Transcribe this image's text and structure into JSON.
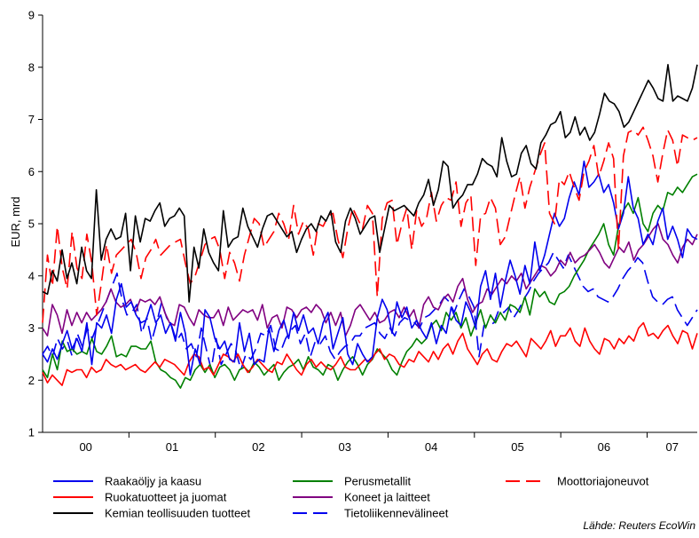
{
  "chart_data": {
    "type": "line",
    "ylabel": "EUR, mrd",
    "xlabel": "",
    "ylim": [
      1,
      9
    ],
    "y_ticks": [
      1,
      2,
      3,
      4,
      5,
      6,
      7,
      8,
      9
    ],
    "x_range": [
      2000.0,
      2007.58
    ],
    "year_labels": [
      {
        "label": "00",
        "year": 2000
      },
      {
        "label": "01",
        "year": 2001
      },
      {
        "label": "02",
        "year": 2002
      },
      {
        "label": "03",
        "year": 2003
      },
      {
        "label": "04",
        "year": 2004
      },
      {
        "label": "05",
        "year": 2005
      },
      {
        "label": "06",
        "year": 2006
      },
      {
        "label": "07",
        "year": 2007
      }
    ],
    "grid": false,
    "legend_position": "bottom",
    "source": "Lähde: Reuters EcoWin",
    "series": [
      {
        "name": "Raakaöljy ja kaasu",
        "color": "#0000ee",
        "dash": "solid",
        "values": [
          2.5,
          2.35,
          2.6,
          2.4,
          2.7,
          2.95,
          2.6,
          2.8,
          2.55,
          3.1,
          2.3,
          3.1,
          3.0,
          3.25,
          2.9,
          3.55,
          3.85,
          3.4,
          3.5,
          3.25,
          3.1,
          3.15,
          3.45,
          3.1,
          3.25,
          2.9,
          3.1,
          2.75,
          3.3,
          2.9,
          2.1,
          2.6,
          2.3,
          3.35,
          3.2,
          2.8,
          2.6,
          2.75,
          2.4,
          2.35,
          3.1,
          2.55,
          2.9,
          2.3,
          2.4,
          2.35,
          3.0,
          2.55,
          2.95,
          3.15,
          2.8,
          3.3,
          2.95,
          3.25,
          2.9,
          3.0,
          2.7,
          3.1,
          3.3,
          2.6,
          2.9,
          3.2,
          2.5,
          2.3,
          2.7,
          2.5,
          2.35,
          2.45,
          3.2,
          3.55,
          3.35,
          2.9,
          3.5,
          3.2,
          3.4,
          3.0,
          3.15,
          2.95,
          2.8,
          3.1,
          2.7,
          3.05,
          2.9,
          3.4,
          3.15,
          3.05,
          3.5,
          3.3,
          3.0,
          3.8,
          4.1,
          3.55,
          4.05,
          3.4,
          3.9,
          4.3,
          4.0,
          3.65,
          4.2,
          3.85,
          4.65,
          4.1,
          4.4,
          4.8,
          5.2,
          4.95,
          5.1,
          5.5,
          5.8,
          5.55,
          6.2,
          5.7,
          5.8,
          5.95,
          5.6,
          5.75,
          5.4,
          4.9,
          5.2,
          5.9,
          5.3,
          5.1,
          4.6,
          4.8,
          4.6,
          5.05,
          5.3,
          4.7,
          4.95,
          4.7,
          4.35,
          4.9,
          4.75,
          4.7
        ]
      },
      {
        "name": "Perusmetallit",
        "color": "#008000",
        "dash": "solid",
        "values": [
          2.2,
          2.05,
          2.5,
          2.2,
          2.75,
          2.55,
          2.6,
          2.5,
          2.55,
          2.5,
          2.8,
          2.55,
          2.5,
          2.65,
          2.85,
          2.45,
          2.5,
          2.45,
          2.65,
          2.65,
          2.6,
          2.6,
          2.75,
          2.35,
          2.2,
          2.15,
          2.05,
          2.0,
          1.85,
          2.05,
          2.0,
          2.2,
          2.3,
          2.15,
          2.3,
          2.05,
          2.25,
          2.3,
          2.2,
          2.0,
          2.2,
          2.25,
          2.15,
          2.35,
          2.25,
          2.1,
          2.2,
          2.3,
          2.0,
          2.15,
          2.25,
          2.3,
          2.4,
          2.2,
          2.45,
          2.25,
          2.2,
          2.1,
          2.3,
          2.25,
          2.0,
          2.2,
          2.35,
          2.45,
          2.3,
          2.1,
          2.3,
          2.4,
          2.6,
          2.5,
          2.4,
          2.2,
          2.1,
          2.35,
          2.55,
          2.65,
          2.8,
          2.7,
          2.8,
          3.05,
          3.15,
          2.95,
          3.3,
          3.15,
          3.3,
          3.0,
          3.2,
          2.85,
          3.1,
          3.35,
          3.0,
          3.25,
          3.1,
          3.3,
          3.15,
          3.45,
          3.4,
          3.3,
          3.6,
          3.25,
          3.75,
          3.6,
          3.7,
          3.5,
          3.45,
          3.65,
          3.7,
          3.8,
          4.0,
          4.15,
          4.3,
          4.5,
          4.65,
          4.8,
          5.0,
          4.6,
          4.4,
          4.95,
          5.25,
          5.4,
          5.2,
          5.5,
          5.0,
          4.85,
          5.2,
          5.35,
          5.25,
          5.6,
          5.55,
          5.7,
          5.6,
          5.75,
          5.9,
          5.95
        ]
      },
      {
        "name": "Moottoriajoneuvot",
        "color": "#ff0000",
        "dash": "dashed",
        "values": [
          3.1,
          4.4,
          3.8,
          4.95,
          4.15,
          3.75,
          4.85,
          4.15,
          3.95,
          4.8,
          4.25,
          3.25,
          3.9,
          4.6,
          4.05,
          4.4,
          4.5,
          4.6,
          4.7,
          4.45,
          3.95,
          4.35,
          4.5,
          4.7,
          4.4,
          4.5,
          4.6,
          4.65,
          4.7,
          4.25,
          3.85,
          4.0,
          4.3,
          4.6,
          4.7,
          4.75,
          4.5,
          3.95,
          4.45,
          4.25,
          3.9,
          4.4,
          4.75,
          5.1,
          5.0,
          4.55,
          4.7,
          4.85,
          5.2,
          5.0,
          4.7,
          5.35,
          4.8,
          5.05,
          4.9,
          4.4,
          5.0,
          4.95,
          5.15,
          5.2,
          4.7,
          4.35,
          4.9,
          5.3,
          5.1,
          4.9,
          5.35,
          5.2,
          3.6,
          5.1,
          5.4,
          5.45,
          4.6,
          5.0,
          5.3,
          4.5,
          5.25,
          4.95,
          5.1,
          5.6,
          5.05,
          5.35,
          5.5,
          5.45,
          5.8,
          4.95,
          5.4,
          5.55,
          4.2,
          5.15,
          5.2,
          5.5,
          5.3,
          4.6,
          4.75,
          5.15,
          5.55,
          5.9,
          5.3,
          5.7,
          6.0,
          6.3,
          6.55,
          5.2,
          5.0,
          5.85,
          5.75,
          6.0,
          5.7,
          5.45,
          6.0,
          6.2,
          6.5,
          5.9,
          6.2,
          6.55,
          6.25,
          4.5,
          6.3,
          6.75,
          6.8,
          6.7,
          6.85,
          6.6,
          6.3,
          5.8,
          6.35,
          6.8,
          6.6,
          6.1,
          6.7,
          6.65,
          6.6,
          6.65
        ]
      },
      {
        "name": "Ruokatuotteet ja juomat",
        "color": "#ff0000",
        "dash": "solid",
        "values": [
          2.15,
          1.95,
          2.1,
          2.0,
          1.9,
          2.2,
          2.15,
          2.2,
          2.2,
          2.05,
          2.25,
          2.15,
          2.2,
          2.4,
          2.3,
          2.25,
          2.3,
          2.2,
          2.25,
          2.3,
          2.2,
          2.15,
          2.25,
          2.35,
          2.25,
          2.4,
          2.35,
          2.3,
          2.2,
          2.1,
          2.35,
          2.5,
          2.45,
          2.2,
          2.25,
          2.1,
          2.3,
          2.5,
          2.45,
          2.35,
          2.5,
          2.3,
          2.15,
          2.25,
          2.4,
          2.3,
          2.2,
          2.15,
          2.35,
          2.3,
          2.5,
          2.35,
          2.2,
          2.1,
          2.3,
          2.4,
          2.25,
          2.35,
          2.25,
          2.2,
          2.3,
          2.45,
          2.25,
          2.2,
          2.2,
          2.3,
          2.4,
          2.35,
          2.5,
          2.6,
          2.4,
          2.5,
          2.45,
          2.3,
          2.25,
          2.4,
          2.35,
          2.55,
          2.45,
          2.35,
          2.55,
          2.4,
          2.6,
          2.7,
          2.5,
          2.75,
          2.9,
          2.6,
          2.45,
          2.3,
          2.5,
          2.6,
          2.4,
          2.35,
          2.55,
          2.7,
          2.65,
          2.75,
          2.6,
          2.45,
          2.8,
          2.7,
          2.6,
          2.75,
          2.95,
          2.65,
          2.85,
          2.85,
          3.0,
          2.75,
          2.65,
          3.0,
          2.75,
          2.6,
          2.5,
          2.8,
          2.75,
          2.6,
          2.8,
          2.7,
          2.85,
          2.75,
          3.0,
          3.1,
          2.85,
          2.9,
          2.8,
          2.95,
          3.05,
          2.85,
          2.7,
          2.95,
          2.9,
          2.6,
          2.9
        ]
      },
      {
        "name": "Koneet ja laitteet",
        "color": "#800080",
        "dash": "solid",
        "values": [
          3.0,
          2.85,
          3.45,
          3.25,
          2.9,
          3.35,
          3.05,
          3.3,
          3.1,
          3.3,
          3.15,
          3.25,
          3.35,
          3.5,
          3.75,
          3.5,
          3.4,
          3.45,
          3.55,
          3.3,
          3.55,
          3.5,
          3.55,
          3.45,
          3.6,
          3.3,
          3.1,
          3.05,
          3.45,
          3.4,
          3.2,
          3.05,
          3.35,
          3.25,
          3.2,
          3.2,
          3.35,
          3.05,
          3.4,
          3.15,
          3.25,
          3.35,
          3.3,
          3.35,
          3.15,
          3.45,
          3.0,
          3.2,
          3.25,
          3.0,
          3.4,
          3.35,
          3.2,
          3.35,
          3.4,
          3.3,
          3.45,
          3.35,
          3.1,
          3.3,
          3.05,
          3.3,
          2.85,
          3.05,
          3.35,
          3.45,
          3.3,
          3.15,
          3.3,
          3.1,
          3.15,
          3.3,
          3.35,
          3.2,
          3.4,
          3.2,
          3.35,
          3.0,
          3.45,
          3.6,
          3.4,
          3.35,
          3.55,
          3.65,
          3.5,
          3.8,
          3.95,
          3.55,
          3.3,
          3.45,
          3.5,
          3.75,
          3.65,
          3.8,
          3.95,
          3.85,
          4.0,
          3.9,
          4.05,
          3.75,
          3.9,
          4.05,
          4.2,
          4.15,
          4.0,
          4.1,
          4.3,
          4.2,
          4.45,
          4.25,
          4.35,
          4.4,
          4.5,
          4.6,
          4.45,
          4.25,
          4.15,
          4.35,
          4.55,
          4.45,
          4.65,
          4.3,
          4.5,
          4.6,
          4.75,
          4.9,
          5.0,
          4.7,
          4.6,
          4.4,
          4.25,
          4.55,
          4.7,
          4.6,
          4.8
        ]
      },
      {
        "name": "Kemian teollisuuden tuotteet",
        "color": "#000000",
        "dash": "solid",
        "values": [
          3.7,
          3.65,
          4.1,
          3.9,
          4.5,
          3.95,
          4.25,
          3.85,
          4.55,
          4.1,
          3.95,
          5.65,
          4.3,
          4.7,
          4.9,
          4.7,
          4.75,
          5.2,
          4.1,
          5.15,
          4.65,
          5.1,
          5.05,
          5.25,
          5.4,
          4.95,
          5.1,
          5.15,
          5.3,
          5.15,
          3.5,
          4.55,
          4.15,
          4.9,
          4.45,
          4.25,
          4.1,
          5.25,
          4.55,
          4.7,
          4.75,
          5.3,
          4.95,
          4.75,
          4.55,
          4.9,
          5.15,
          5.2,
          5.05,
          4.9,
          4.75,
          4.85,
          4.45,
          4.7,
          4.9,
          5.0,
          4.85,
          5.15,
          5.05,
          5.25,
          4.65,
          4.45,
          5.05,
          5.3,
          5.1,
          4.8,
          4.95,
          5.1,
          5.15,
          4.45,
          4.9,
          5.35,
          5.25,
          5.3,
          5.35,
          5.25,
          5.15,
          5.4,
          5.55,
          5.85,
          5.35,
          5.65,
          6.2,
          6.1,
          5.3,
          5.45,
          5.55,
          5.75,
          5.75,
          5.95,
          6.25,
          6.15,
          6.1,
          5.9,
          6.65,
          6.2,
          5.9,
          5.95,
          6.35,
          6.5,
          6.15,
          6.05,
          6.55,
          6.7,
          6.9,
          6.95,
          7.15,
          6.65,
          6.75,
          7.05,
          6.7,
          6.85,
          6.6,
          6.75,
          7.1,
          7.5,
          7.35,
          7.3,
          7.15,
          6.85,
          6.95,
          7.15,
          7.35,
          7.55,
          7.75,
          7.6,
          7.4,
          7.35,
          8.05,
          7.35,
          7.45,
          7.4,
          7.35,
          7.6,
          8.05
        ]
      },
      {
        "name": "Tietoliikennevälineet",
        "color": "#0000ee",
        "dash": "dashed",
        "values": [
          2.5,
          2.65,
          2.45,
          2.8,
          2.6,
          2.75,
          2.45,
          2.9,
          2.65,
          3.0,
          2.8,
          3.05,
          3.3,
          3.55,
          3.8,
          4.05,
          3.55,
          3.25,
          3.3,
          3.45,
          2.9,
          3.2,
          2.75,
          3.1,
          3.5,
          3.2,
          3.05,
          2.75,
          2.9,
          2.6,
          2.7,
          2.45,
          3.0,
          2.6,
          2.2,
          2.8,
          2.3,
          2.5,
          2.7,
          2.55,
          2.2,
          2.5,
          2.4,
          2.6,
          2.9,
          2.85,
          3.05,
          2.6,
          2.55,
          2.8,
          2.95,
          3.05,
          2.7,
          2.9,
          2.45,
          2.75,
          2.7,
          2.85,
          2.55,
          2.4,
          2.55,
          2.65,
          2.7,
          2.85,
          2.85,
          3.0,
          3.05,
          3.1,
          2.9,
          2.8,
          3.0,
          2.85,
          3.1,
          3.2,
          3.15,
          3.1,
          3.0,
          3.2,
          3.25,
          3.35,
          3.45,
          3.6,
          3.5,
          3.3,
          3.55,
          3.75,
          3.6,
          3.4,
          2.45,
          3.05,
          3.05,
          3.1,
          3.35,
          3.3,
          3.4,
          3.2,
          3.35,
          3.55,
          3.7,
          3.9,
          4.05,
          4.15,
          4.25,
          4.45,
          4.3,
          4.15,
          4.4,
          4.2,
          4.0,
          3.8,
          3.7,
          3.75,
          3.6,
          3.55,
          3.5,
          3.6,
          3.75,
          3.95,
          4.1,
          4.2,
          4.35,
          4.25,
          3.9,
          3.6,
          3.5,
          3.45,
          3.55,
          3.6,
          3.35,
          3.2,
          3.05,
          3.2,
          3.35
        ]
      }
    ],
    "legend_order": [
      0,
      3,
      5,
      1,
      4,
      6,
      2
    ]
  }
}
